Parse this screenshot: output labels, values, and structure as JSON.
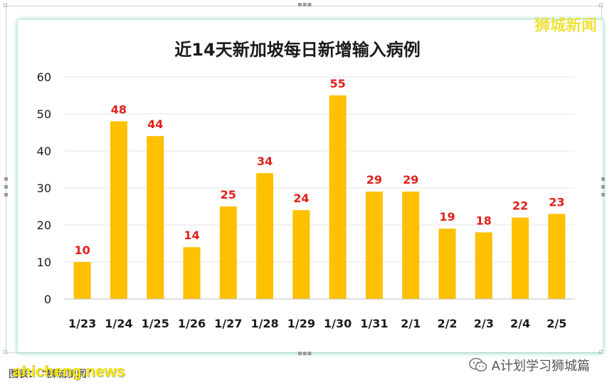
{
  "brand": "狮城新闻",
  "footer": {
    "caption": "图表：  “狮城新闻”",
    "watermark": "ahicheng.news",
    "wechat_label": "A计划学习狮城篇"
  },
  "colors": {
    "bar": "#ffc000",
    "value_label": "#e0201a",
    "title": "#1a1a1a",
    "axis_text": "#1a1a1a",
    "grid": "#e6e6e6",
    "panel_glow": "#6ecdaf",
    "brand": "#f3e31c"
  },
  "chart_data": {
    "type": "bar",
    "title": "近14天新加坡每日新增输入病例",
    "xlabel": "",
    "ylabel": "",
    "ylim": [
      0,
      60
    ],
    "yticks": [
      0,
      10,
      20,
      30,
      40,
      50,
      60
    ],
    "grid": true,
    "categories": [
      "1/23",
      "1/24",
      "1/25",
      "1/26",
      "1/27",
      "1/28",
      "1/29",
      "1/30",
      "1/31",
      "2/1",
      "2/2",
      "2/3",
      "2/4",
      "2/5"
    ],
    "values": [
      10,
      48,
      44,
      14,
      25,
      34,
      24,
      55,
      29,
      29,
      19,
      18,
      22,
      23
    ],
    "data_labels": true
  }
}
